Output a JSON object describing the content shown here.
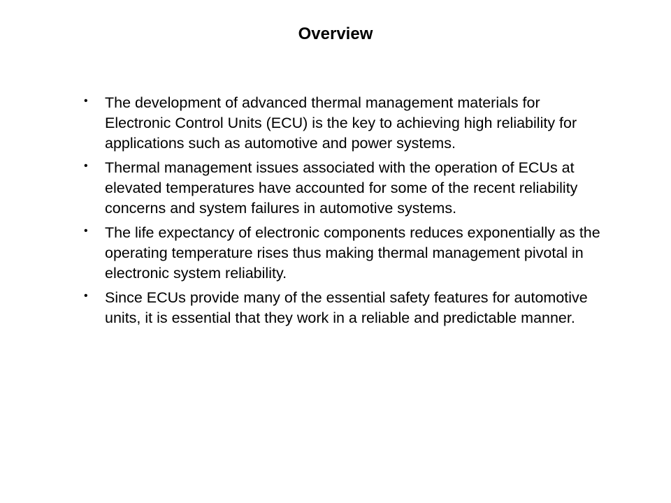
{
  "slide": {
    "title": "Overview",
    "title_fontsize": 24,
    "title_fontweight": "bold",
    "body_fontsize": 21.5,
    "text_color": "#000000",
    "background_color": "#ffffff",
    "bullets": [
      "The development of advanced thermal management materials for Electronic Control Units (ECU) is the key to achieving high reliability for applications such as automotive and power systems.",
      "Thermal management issues associated with the operation of ECUs at elevated temperatures have accounted for some of the recent reliability concerns and system failures in automotive systems.",
      "The life expectancy of electronic components reduces exponentially as the operating temperature rises thus making thermal management pivotal in electronic system reliability.",
      "Since ECUs provide many of the essential safety features for automotive units, it is essential that they work in a reliable and predictable manner."
    ]
  }
}
